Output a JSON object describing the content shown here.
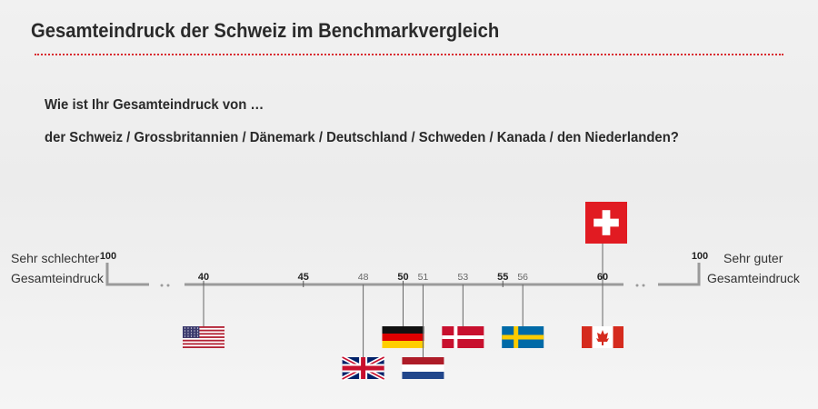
{
  "header": {
    "title": "Gesamteindruck der Schweiz im Benchmarkvergleich"
  },
  "question": {
    "line1": "Wie ist Ihr Gesamteindruck von …",
    "line2": "der Schweiz / Grossbritannien / Dänemark / Deutschland / Schweden / Kanada / den Niederlanden?"
  },
  "scale": {
    "left_label_line1": "Sehr schlechter",
    "left_label_line2": "Gesamteindruck",
    "right_label_line1": "Sehr guter",
    "right_label_line2": "Gesamteindruck",
    "left_end_value": "100",
    "right_end_value": "100"
  },
  "chart_data": {
    "type": "scatter",
    "title": "Gesamteindruck der Schweiz im Benchmarkvergleich",
    "axis_ticks": [
      40,
      45,
      50,
      55,
      60
    ],
    "xlim": [
      40,
      60
    ],
    "countries": [
      {
        "name": "USA",
        "value": 40,
        "flag": "us-flag",
        "row": "upper"
      },
      {
        "name": "Grossbritannien",
        "value": 48,
        "flag": "uk-flag",
        "row": "lower"
      },
      {
        "name": "Deutschland",
        "value": 50,
        "flag": "germany-flag",
        "row": "upper"
      },
      {
        "name": "Niederlande",
        "value": 51,
        "flag": "netherlands-flag",
        "row": "lower"
      },
      {
        "name": "Dänemark",
        "value": 53,
        "flag": "denmark-flag",
        "row": "upper"
      },
      {
        "name": "Schweden",
        "value": 56,
        "flag": "sweden-flag",
        "row": "upper"
      },
      {
        "name": "Kanada",
        "value": 60,
        "flag": "canada-flag",
        "row": "upper"
      },
      {
        "name": "Schweiz",
        "value": 60,
        "flag": "switzerland-flag",
        "row": "above"
      }
    ]
  },
  "colors": {
    "accent_red": "#d9262c",
    "axis_grey": "#9a9a9a"
  }
}
